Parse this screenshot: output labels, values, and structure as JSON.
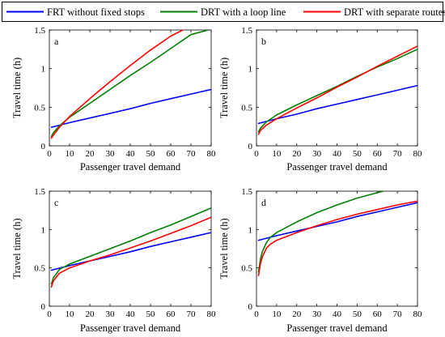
{
  "legend": {
    "placement": "top",
    "items": [
      {
        "label": "FRT without fixed stops",
        "color": "#0000ff"
      },
      {
        "label": "DRT with a loop line",
        "color": "#008000"
      },
      {
        "label": "DRT with separate routes",
        "color": "#ff0000"
      }
    ]
  },
  "chart_data": [
    {
      "type": "line",
      "panel_label": "a",
      "xlabel": "Passenger travel demand",
      "ylabel": "Travel time (h)",
      "xlim": [
        0,
        80
      ],
      "ylim": [
        0,
        1.5
      ],
      "xticks": [
        "0",
        "10",
        "20",
        "30",
        "40",
        "50",
        "60",
        "70",
        "80"
      ],
      "yticks": [
        "0",
        "0.5",
        "1",
        "1.5"
      ],
      "grid": false,
      "series": [
        {
          "name": "FRT without fixed stops",
          "color": "#0000ff",
          "x": [
            1,
            10,
            20,
            30,
            40,
            50,
            60,
            70,
            80
          ],
          "y": [
            0.24,
            0.3,
            0.36,
            0.42,
            0.48,
            0.55,
            0.61,
            0.67,
            0.73
          ]
        },
        {
          "name": "DRT with a loop line",
          "color": "#008000",
          "x": [
            1,
            2,
            5,
            10,
            20,
            30,
            40,
            50,
            60,
            70,
            78.5
          ],
          "y": [
            0.12,
            0.17,
            0.26,
            0.37,
            0.55,
            0.73,
            0.91,
            1.08,
            1.26,
            1.44,
            1.5
          ]
        },
        {
          "name": "DRT with separate routes",
          "color": "#ff0000",
          "x": [
            1,
            2,
            5,
            10,
            20,
            30,
            40,
            50,
            60,
            66
          ],
          "y": [
            0.1,
            0.14,
            0.24,
            0.38,
            0.61,
            0.83,
            1.04,
            1.24,
            1.42,
            1.5
          ]
        }
      ]
    },
    {
      "type": "line",
      "panel_label": "b",
      "xlabel": "Passenger travel demand",
      "ylabel": "Travel time (h)",
      "xlim": [
        0,
        80
      ],
      "ylim": [
        0,
        1.5
      ],
      "xticks": [
        "0",
        "10",
        "20",
        "30",
        "40",
        "50",
        "60",
        "70",
        "80"
      ],
      "yticks": [
        "0",
        "0.5",
        "1",
        "1.5"
      ],
      "grid": false,
      "series": [
        {
          "name": "FRT without fixed stops",
          "color": "#0000ff",
          "x": [
            1,
            10,
            20,
            30,
            40,
            50,
            60,
            70,
            80
          ],
          "y": [
            0.29,
            0.35,
            0.41,
            0.48,
            0.54,
            0.6,
            0.66,
            0.72,
            0.78
          ]
        },
        {
          "name": "DRT with a loop line",
          "color": "#008000",
          "x": [
            1,
            2,
            5,
            10,
            20,
            30,
            40,
            50,
            60,
            70,
            80
          ],
          "y": [
            0.18,
            0.23,
            0.31,
            0.4,
            0.53,
            0.65,
            0.77,
            0.9,
            1.02,
            1.13,
            1.25
          ]
        },
        {
          "name": "DRT with separate routes",
          "color": "#ff0000",
          "x": [
            1,
            2,
            5,
            10,
            20,
            30,
            40,
            50,
            60,
            70,
            80
          ],
          "y": [
            0.15,
            0.2,
            0.27,
            0.35,
            0.49,
            0.62,
            0.76,
            0.89,
            1.03,
            1.16,
            1.29
          ]
        }
      ]
    },
    {
      "type": "line",
      "panel_label": "c",
      "xlabel": "Passenger travel demand",
      "ylabel": "Travel time (h)",
      "xlim": [
        0,
        80
      ],
      "ylim": [
        0,
        1.5
      ],
      "xticks": [
        "0",
        "10",
        "20",
        "30",
        "40",
        "50",
        "60",
        "70",
        "80"
      ],
      "yticks": [
        "0",
        "0.5",
        "1",
        "1.5"
      ],
      "grid": false,
      "series": [
        {
          "name": "FRT without fixed stops",
          "color": "#0000ff",
          "x": [
            1,
            10,
            20,
            30,
            40,
            50,
            60,
            70,
            80
          ],
          "y": [
            0.47,
            0.53,
            0.59,
            0.65,
            0.71,
            0.78,
            0.84,
            0.9,
            0.96
          ]
        },
        {
          "name": "DRT with a loop line",
          "color": "#008000",
          "x": [
            1,
            2,
            5,
            10,
            20,
            30,
            40,
            50,
            60,
            70,
            80
          ],
          "y": [
            0.29,
            0.37,
            0.48,
            0.55,
            0.65,
            0.75,
            0.85,
            0.96,
            1.06,
            1.17,
            1.28
          ]
        },
        {
          "name": "DRT with separate routes",
          "color": "#ff0000",
          "x": [
            1,
            2,
            5,
            10,
            20,
            30,
            40,
            50,
            60,
            70,
            80
          ],
          "y": [
            0.25,
            0.33,
            0.43,
            0.5,
            0.59,
            0.67,
            0.76,
            0.85,
            0.95,
            1.05,
            1.16
          ]
        }
      ]
    },
    {
      "type": "line",
      "panel_label": "d",
      "xlabel": "Passenger travel demand",
      "ylabel": "Travel time (h)",
      "xlim": [
        0,
        80
      ],
      "ylim": [
        0,
        1.5
      ],
      "xticks": [
        "0",
        "10",
        "20",
        "30",
        "40",
        "50",
        "60",
        "70",
        "80"
      ],
      "yticks": [
        "0",
        "0.5",
        "1",
        "1.5"
      ],
      "grid": false,
      "series": [
        {
          "name": "FRT without fixed stops",
          "color": "#0000ff",
          "x": [
            1,
            10,
            20,
            30,
            40,
            50,
            60,
            70,
            80
          ],
          "y": [
            0.86,
            0.92,
            0.98,
            1.04,
            1.1,
            1.17,
            1.23,
            1.29,
            1.35
          ]
        },
        {
          "name": "DRT with a loop line",
          "color": "#008000",
          "x": [
            1,
            2,
            3,
            5,
            7,
            10,
            20,
            30,
            40,
            50,
            60,
            63
          ],
          "y": [
            0.45,
            0.62,
            0.72,
            0.83,
            0.9,
            0.96,
            1.1,
            1.22,
            1.32,
            1.41,
            1.48,
            1.5
          ]
        },
        {
          "name": "DRT with separate routes",
          "color": "#ff0000",
          "x": [
            1,
            2,
            3,
            5,
            7,
            10,
            20,
            30,
            40,
            50,
            60,
            70,
            80
          ],
          "y": [
            0.4,
            0.56,
            0.65,
            0.76,
            0.81,
            0.86,
            0.96,
            1.05,
            1.13,
            1.2,
            1.26,
            1.32,
            1.37
          ]
        }
      ]
    }
  ]
}
